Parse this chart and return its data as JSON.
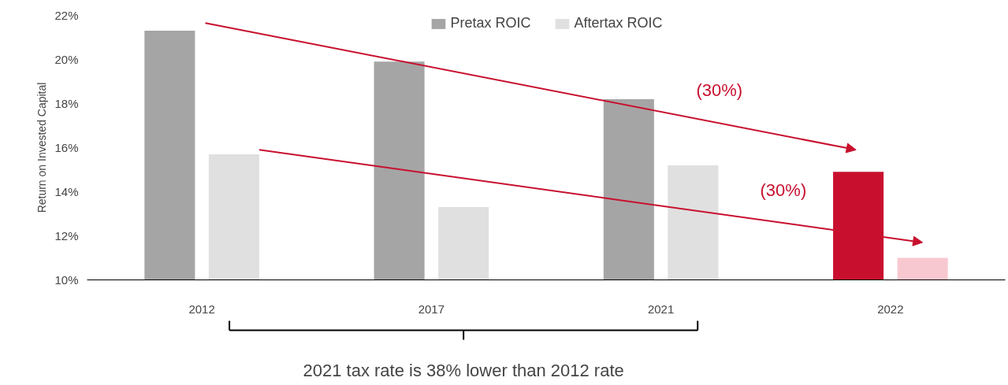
{
  "chart_data": {
    "type": "bar",
    "ylabel": "Return on Invested Capital",
    "categories": [
      "2012",
      "2017",
      "2021",
      "2022"
    ],
    "series": [
      {
        "name": "Pretax ROIC",
        "colors": [
          "#a5a5a5",
          "#a5a5a5",
          "#a5a5a5",
          "#c8102e"
        ],
        "values": [
          21.3,
          19.9,
          18.2,
          14.9
        ]
      },
      {
        "name": "Aftertax ROIC",
        "colors": [
          "#e0e0e0",
          "#e0e0e0",
          "#e0e0e0",
          "#f8c8d0"
        ],
        "values": [
          15.7,
          13.3,
          15.2,
          11.0
        ]
      }
    ],
    "ylim": [
      10,
      22
    ],
    "yticks": [
      {
        "value": 10,
        "label": "10%"
      },
      {
        "value": 12,
        "label": "12%"
      },
      {
        "value": 14,
        "label": "14%"
      },
      {
        "value": 16,
        "label": "16%"
      },
      {
        "value": 18,
        "label": "18%"
      },
      {
        "value": 20,
        "label": "20%"
      },
      {
        "value": 22,
        "label": "22%"
      }
    ],
    "annotations": [
      "(30%)",
      "(30%)",
      "2021 tax rate is 38% lower than 2012 rate"
    ],
    "legend": "top",
    "grid": false
  }
}
